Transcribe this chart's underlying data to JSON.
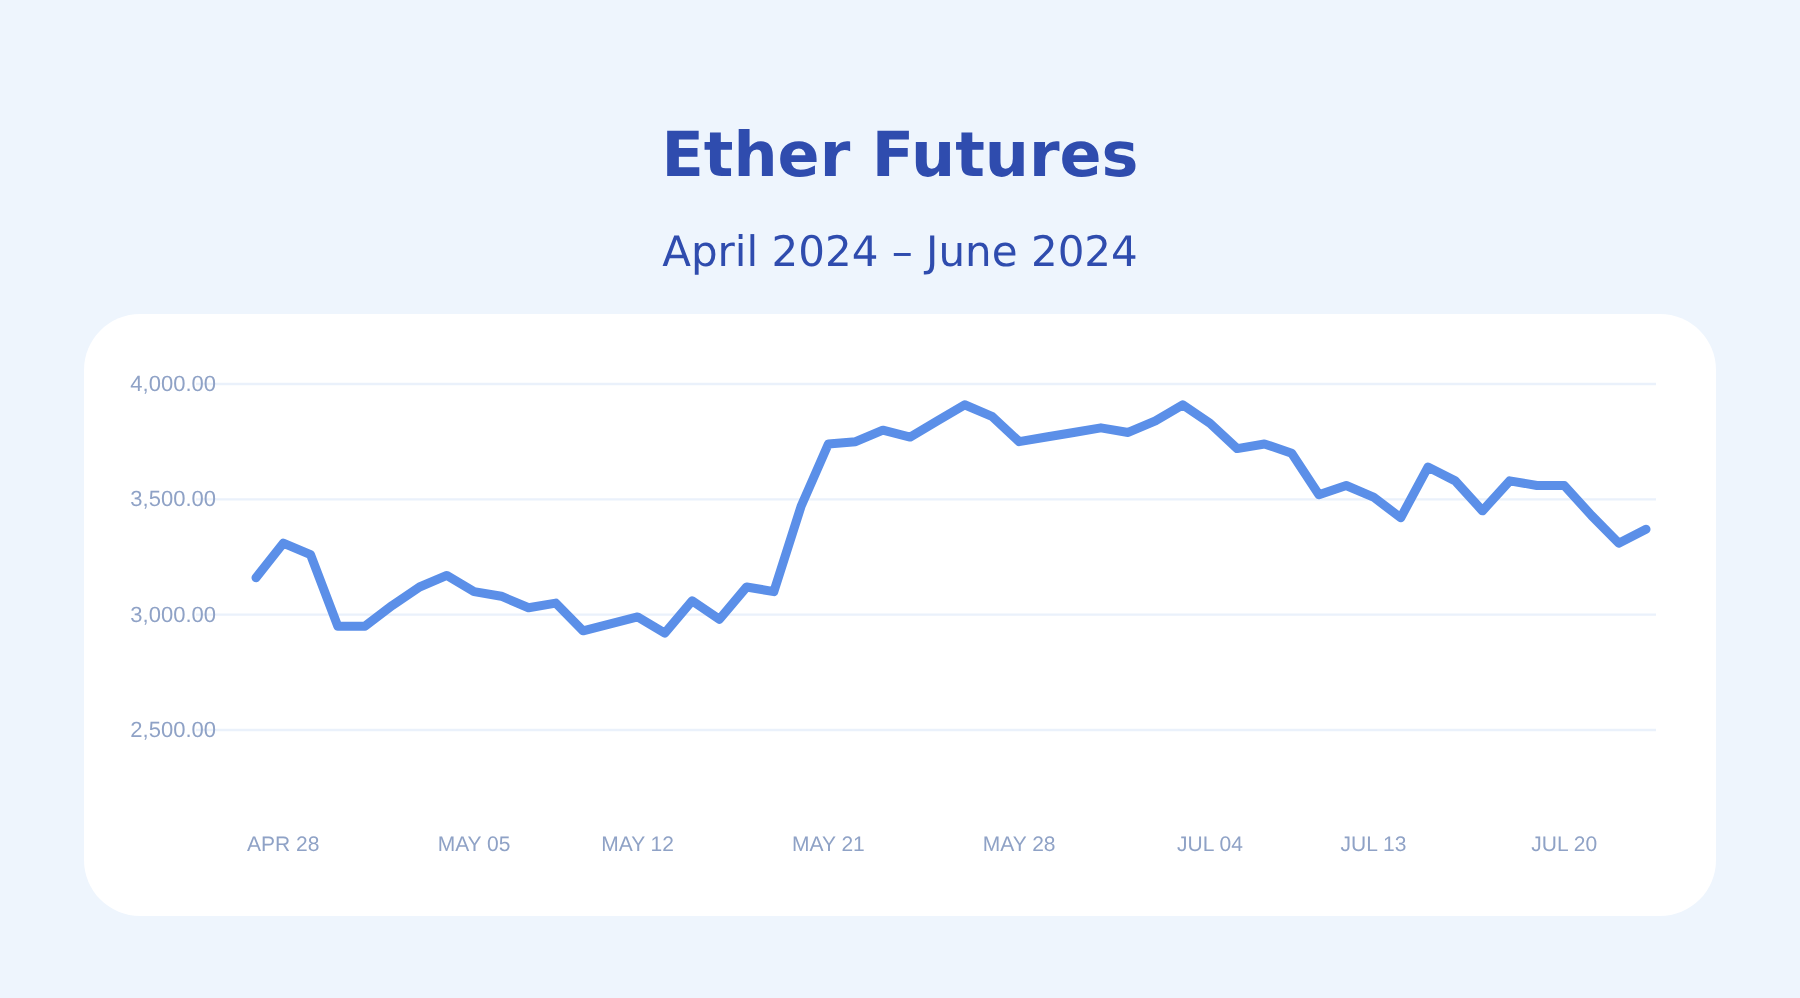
{
  "chart_data": {
    "type": "line",
    "title": "Ether Futures",
    "subtitle": "April 2024 – June 2024",
    "categories": [
      null,
      "APR 28",
      null,
      null,
      null,
      null,
      null,
      null,
      "MAY 05",
      null,
      null,
      null,
      null,
      null,
      "MAY 12",
      null,
      null,
      null,
      null,
      null,
      null,
      "MAY 21",
      null,
      null,
      null,
      null,
      null,
      null,
      "MAY 28",
      null,
      null,
      null,
      null,
      null,
      null,
      "JUL 04",
      null,
      null,
      null,
      null,
      null,
      "JUL 13",
      null,
      null,
      null,
      null,
      null,
      null,
      "JUL 20",
      null,
      null,
      null
    ],
    "series": [
      {
        "color": "#5b8fe8",
        "values": [
          3160,
          3310,
          3260,
          2950,
          2950,
          3040,
          3120,
          3170,
          3100,
          3080,
          3030,
          3050,
          2930,
          2960,
          2990,
          2920,
          3060,
          2980,
          3120,
          3100,
          3470,
          3740,
          3750,
          3800,
          3770,
          3840,
          3910,
          3860,
          3750,
          3770,
          3790,
          3810,
          3790,
          3840,
          3910,
          3830,
          3720,
          3740,
          3700,
          3520,
          3560,
          3510,
          3420,
          3640,
          3580,
          3450,
          3580,
          3560,
          3560,
          3430,
          3310,
          3370
        ]
      }
    ],
    "ylim": [
      2500,
      4000
    ],
    "yticks": [
      {
        "value": 2500,
        "label": "2,500.00"
      },
      {
        "value": 3000,
        "label": "3,000.00"
      },
      {
        "value": 3500,
        "label": "3,500.00"
      },
      {
        "value": 4000,
        "label": "4,000.00"
      }
    ],
    "grid": "y",
    "line_style": "solid",
    "marker": "none"
  }
}
